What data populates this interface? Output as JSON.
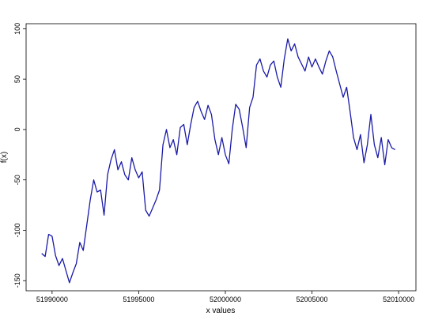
{
  "chart_data": {
    "type": "line",
    "title": "",
    "xlabel": "x values",
    "ylabel": "f(x)",
    "xlim": [
      51988500,
      52011000
    ],
    "ylim": [
      -160,
      105
    ],
    "x_ticks": [
      51990000,
      51995000,
      52000000,
      52005000,
      52010000
    ],
    "x_tick_labels": [
      "51990000",
      "51995000",
      "52000000",
      "52005000",
      "52010000"
    ],
    "y_ticks": [
      -150,
      -100,
      -50,
      0,
      50,
      100
    ],
    "y_tick_labels": [
      "-150",
      "-100",
      "-50",
      "0",
      "50",
      "100"
    ],
    "grid": false,
    "legend": "none",
    "series": [
      {
        "color": "#1a1aa8",
        "x": [
          51989400,
          51989600,
          51989800,
          51990000,
          51990200,
          51990400,
          51990600,
          51990800,
          51991000,
          51991200,
          51991400,
          51991600,
          51991800,
          51992000,
          51992200,
          51992400,
          51992600,
          51992800,
          51993000,
          51993200,
          51993400,
          51993600,
          51993800,
          51994000,
          51994200,
          51994400,
          51994600,
          51994800,
          51995000,
          51995200,
          51995400,
          51995600,
          51995800,
          51996000,
          51996200,
          51996400,
          51996600,
          51996800,
          51997000,
          51997200,
          51997400,
          51997600,
          51997800,
          51998000,
          51998200,
          51998400,
          51998600,
          51998800,
          51999000,
          51999200,
          51999400,
          51999600,
          51999800,
          52000000,
          52000200,
          52000400,
          52000600,
          52000800,
          52001000,
          52001200,
          52001400,
          52001600,
          52001800,
          52002000,
          52002200,
          52002400,
          52002600,
          52002800,
          52003000,
          52003200,
          52003400,
          52003600,
          52003800,
          52004000,
          52004200,
          52004400,
          52004600,
          52004800,
          52005000,
          52005200,
          52005400,
          52005600,
          52005800,
          52006000,
          52006200,
          52006400,
          52006600,
          52006800,
          52007000,
          52007200,
          52007400,
          52007600,
          52007800,
          52008000,
          52008200,
          52008400,
          52008600,
          52008800,
          52009000,
          52009200,
          52009400,
          52009600,
          52009800
        ],
        "y": [
          -123,
          -126,
          -104,
          -106,
          -125,
          -135,
          -128,
          -140,
          -152,
          -142,
          -133,
          -112,
          -120,
          -95,
          -70,
          -50,
          -62,
          -60,
          -85,
          -45,
          -30,
          -20,
          -40,
          -32,
          -45,
          -50,
          -28,
          -40,
          -48,
          -42,
          -80,
          -86,
          -78,
          -70,
          -60,
          -15,
          0,
          -18,
          -10,
          -25,
          2,
          5,
          -15,
          5,
          22,
          28,
          18,
          10,
          24,
          15,
          -10,
          -25,
          -8,
          -25,
          -34,
          0,
          25,
          20,
          2,
          -18,
          22,
          32,
          64,
          70,
          58,
          52,
          64,
          68,
          52,
          42,
          70,
          90,
          78,
          85,
          72,
          65,
          58,
          72,
          62,
          70,
          62,
          55,
          68,
          78,
          72,
          58,
          45,
          32,
          42,
          18,
          -8,
          -20,
          -5,
          -33,
          -15,
          15,
          -15,
          -28,
          -8,
          -35,
          -10,
          -18,
          -20
        ]
      }
    ]
  }
}
